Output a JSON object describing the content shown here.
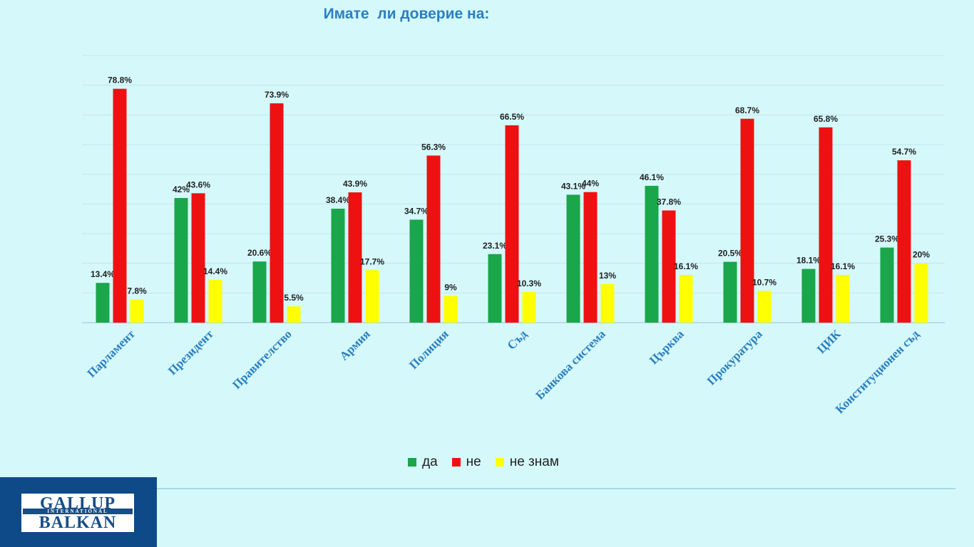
{
  "chart_data": {
    "type": "bar",
    "title": "Имате  ли доверие на:",
    "categories": [
      "Парламент",
      "Президент",
      "Правителство",
      "Армия",
      "Полиция",
      "Съд",
      "Банкова система",
      "Църква",
      "Прокуратура",
      "ЦИК",
      "Конституционен съд"
    ],
    "series": [
      {
        "name": "да",
        "color": "#1aa64a",
        "values": [
          13.4,
          42,
          20.6,
          38.4,
          34.7,
          23.1,
          43.1,
          46.1,
          20.5,
          18.1,
          25.3
        ],
        "labels": [
          "13.4%",
          "42%",
          "20.6%",
          "38.4%",
          "34.7%",
          "23.1%",
          "43.1%",
          "46.1%",
          "20.5%",
          "18.1%",
          "25.3%"
        ]
      },
      {
        "name": "не",
        "color": "#ee1111",
        "values": [
          78.8,
          43.6,
          73.9,
          43.9,
          56.3,
          66.5,
          44,
          37.8,
          68.7,
          65.8,
          54.7
        ],
        "labels": [
          "78.8%",
          "43.6%",
          "73.9%",
          "43.9%",
          "56.3%",
          "66.5%",
          "44%",
          "37.8%",
          "68.7%",
          "65.8%",
          "54.7%"
        ]
      },
      {
        "name": "не знам",
        "color": "#ffff00",
        "values": [
          7.8,
          14.4,
          5.5,
          17.7,
          9,
          10.3,
          13,
          16.1,
          10.7,
          16.1,
          20
        ],
        "labels": [
          "7.8%",
          "14.4%",
          "5.5%",
          "17.7%",
          "9%",
          "10.3%",
          "13%",
          "16.1%",
          "10.7%",
          "16.1%",
          "20%"
        ]
      }
    ],
    "ylim": [
      0,
      90
    ],
    "grid": true,
    "legend": "bottom"
  },
  "logo": {
    "line1": "GALLUP",
    "line2": "INTERNATIONAL",
    "line3": "BALKAN"
  }
}
